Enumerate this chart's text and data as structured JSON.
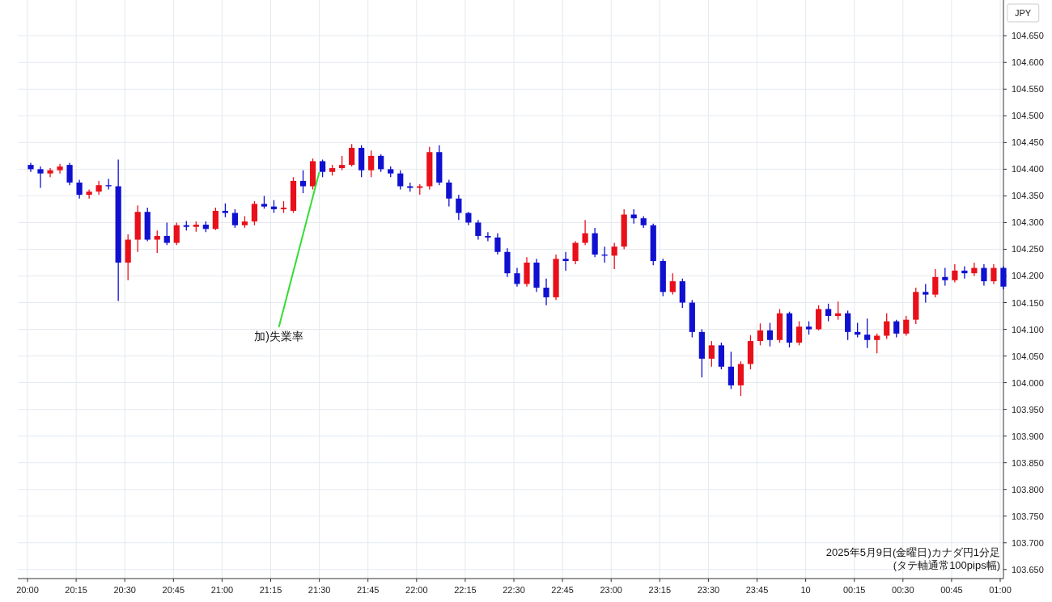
{
  "chart_data": {
    "type": "candlestick",
    "ylabel": "JPY",
    "x": [
      "2025-05-09T20:00",
      "2025-05-09T20:03",
      "2025-05-09T20:06",
      "2025-05-09T20:09",
      "2025-05-09T20:12",
      "2025-05-09T20:15",
      "2025-05-09T20:18",
      "2025-05-09T20:21",
      "2025-05-09T20:24",
      "2025-05-09T20:27",
      "2025-05-09T20:30",
      "2025-05-09T20:33",
      "2025-05-09T20:36",
      "2025-05-09T20:39",
      "2025-05-09T20:42",
      "2025-05-09T20:45",
      "2025-05-09T20:48",
      "2025-05-09T20:51",
      "2025-05-09T20:54",
      "2025-05-09T20:57",
      "2025-05-09T21:00",
      "2025-05-09T21:03",
      "2025-05-09T21:06",
      "2025-05-09T21:09",
      "2025-05-09T21:12",
      "2025-05-09T21:15",
      "2025-05-09T21:18",
      "2025-05-09T21:21",
      "2025-05-09T21:24",
      "2025-05-09T21:27",
      "2025-05-09T21:30",
      "2025-05-09T21:33",
      "2025-05-09T21:36",
      "2025-05-09T21:39",
      "2025-05-09T21:42",
      "2025-05-09T21:45",
      "2025-05-09T21:48",
      "2025-05-09T21:51",
      "2025-05-09T21:54",
      "2025-05-09T21:57",
      "2025-05-09T22:00",
      "2025-05-09T22:03",
      "2025-05-09T22:06",
      "2025-05-09T22:09",
      "2025-05-09T22:12",
      "2025-05-09T22:15",
      "2025-05-09T22:18",
      "2025-05-09T22:21",
      "2025-05-09T22:24",
      "2025-05-09T22:27",
      "2025-05-09T22:30",
      "2025-05-09T22:33",
      "2025-05-09T22:36",
      "2025-05-09T22:39",
      "2025-05-09T22:42",
      "2025-05-09T22:45",
      "2025-05-09T22:48",
      "2025-05-09T22:51",
      "2025-05-09T22:54",
      "2025-05-09T22:57",
      "2025-05-09T23:00",
      "2025-05-09T23:03",
      "2025-05-09T23:06",
      "2025-05-09T23:09",
      "2025-05-09T23:12",
      "2025-05-09T23:15",
      "2025-05-09T23:18",
      "2025-05-09T23:21",
      "2025-05-09T23:24",
      "2025-05-09T23:27",
      "2025-05-09T23:30",
      "2025-05-09T23:33",
      "2025-05-09T23:36",
      "2025-05-09T23:39",
      "2025-05-09T23:42",
      "2025-05-09T23:45",
      "2025-05-09T23:48",
      "2025-05-09T23:51",
      "2025-05-09T23:54",
      "2025-05-09T23:57",
      "2025-05-10T00:00",
      "2025-05-10T00:03",
      "2025-05-10T00:06",
      "2025-05-10T00:09",
      "2025-05-10T00:12",
      "2025-05-10T00:15",
      "2025-05-10T00:18",
      "2025-05-10T00:21",
      "2025-05-10T00:24",
      "2025-05-10T00:27",
      "2025-05-10T00:30",
      "2025-05-10T00:33",
      "2025-05-10T00:36",
      "2025-05-10T00:39",
      "2025-05-10T00:42",
      "2025-05-10T00:45",
      "2025-05-10T00:48",
      "2025-05-10T00:51",
      "2025-05-10T00:54",
      "2025-05-10T00:57",
      "2025-05-10T01:00"
    ],
    "ohlc": [
      [
        104.408,
        104.412,
        104.395,
        104.4
      ],
      [
        104.4,
        104.405,
        104.365,
        104.392
      ],
      [
        104.392,
        104.402,
        104.385,
        104.398
      ],
      [
        104.398,
        104.41,
        104.392,
        104.405
      ],
      [
        104.408,
        104.412,
        104.37,
        104.375
      ],
      [
        104.375,
        104.38,
        104.345,
        104.352
      ],
      [
        104.352,
        104.362,
        104.345,
        104.358
      ],
      [
        104.358,
        104.378,
        104.352,
        104.37
      ],
      [
        104.37,
        104.382,
        104.362,
        104.368
      ],
      [
        104.368,
        104.418,
        104.153,
        104.225
      ],
      [
        104.225,
        104.278,
        104.192,
        104.268
      ],
      [
        104.268,
        104.332,
        104.245,
        104.32
      ],
      [
        104.32,
        104.328,
        104.265,
        104.268
      ],
      [
        104.268,
        104.285,
        104.243,
        104.275
      ],
      [
        104.275,
        104.3,
        104.258,
        104.262
      ],
      [
        104.262,
        104.3,
        104.258,
        104.295
      ],
      [
        104.295,
        104.303,
        104.285,
        104.292
      ],
      [
        104.292,
        104.302,
        104.283,
        104.296
      ],
      [
        104.296,
        104.302,
        104.282,
        104.288
      ],
      [
        104.288,
        104.328,
        104.286,
        104.322
      ],
      [
        104.322,
        104.336,
        104.31,
        104.318
      ],
      [
        104.318,
        104.325,
        104.29,
        104.295
      ],
      [
        104.295,
        104.312,
        104.29,
        104.302
      ],
      [
        104.302,
        104.34,
        104.295,
        104.335
      ],
      [
        104.335,
        104.35,
        104.326,
        104.33
      ],
      [
        104.33,
        104.342,
        104.318,
        104.325
      ],
      [
        104.325,
        104.34,
        104.318,
        104.328
      ],
      [
        104.322,
        104.385,
        104.318,
        104.378
      ],
      [
        104.378,
        104.398,
        104.355,
        104.368
      ],
      [
        104.368,
        104.42,
        104.362,
        104.415
      ],
      [
        104.415,
        104.418,
        104.385,
        104.395
      ],
      [
        104.395,
        104.408,
        104.388,
        104.402
      ],
      [
        104.402,
        104.425,
        104.398,
        104.408
      ],
      [
        104.408,
        104.447,
        104.405,
        104.44
      ],
      [
        104.44,
        104.445,
        104.385,
        104.398
      ],
      [
        104.398,
        104.435,
        104.385,
        104.425
      ],
      [
        104.425,
        104.428,
        104.395,
        104.4
      ],
      [
        104.4,
        104.405,
        104.385,
        104.392
      ],
      [
        104.392,
        104.398,
        104.362,
        104.368
      ],
      [
        104.368,
        104.375,
        104.358,
        104.365
      ],
      [
        104.365,
        104.372,
        104.352,
        104.368
      ],
      [
        104.368,
        104.442,
        104.362,
        104.432
      ],
      [
        104.432,
        104.445,
        104.37,
        104.375
      ],
      [
        104.375,
        104.38,
        104.33,
        104.345
      ],
      [
        104.345,
        104.352,
        104.305,
        104.318
      ],
      [
        104.318,
        104.32,
        104.295,
        104.3
      ],
      [
        104.3,
        104.305,
        104.268,
        104.275
      ],
      [
        104.275,
        104.282,
        104.265,
        104.272
      ],
      [
        104.272,
        104.28,
        104.24,
        104.245
      ],
      [
        104.245,
        104.252,
        104.198,
        104.205
      ],
      [
        104.205,
        104.215,
        104.18,
        104.185
      ],
      [
        104.185,
        104.235,
        104.18,
        104.225
      ],
      [
        104.225,
        104.232,
        104.17,
        104.178
      ],
      [
        104.178,
        104.195,
        104.145,
        104.16
      ],
      [
        104.16,
        104.24,
        104.155,
        104.232
      ],
      [
        104.232,
        104.245,
        104.21,
        104.228
      ],
      [
        104.228,
        104.265,
        104.222,
        104.262
      ],
      [
        104.262,
        104.305,
        104.258,
        104.28
      ],
      [
        104.28,
        104.29,
        104.235,
        104.24
      ],
      [
        104.24,
        104.255,
        104.225,
        104.238
      ],
      [
        104.238,
        104.262,
        104.213,
        104.255
      ],
      [
        104.255,
        104.325,
        104.25,
        104.315
      ],
      [
        104.315,
        104.325,
        104.298,
        104.308
      ],
      [
        104.308,
        104.312,
        104.29,
        104.295
      ],
      [
        104.295,
        104.298,
        104.22,
        104.228
      ],
      [
        104.228,
        104.232,
        104.162,
        104.17
      ],
      [
        104.17,
        104.205,
        104.165,
        104.19
      ],
      [
        104.19,
        104.195,
        104.14,
        104.15
      ],
      [
        104.15,
        104.155,
        104.085,
        104.095
      ],
      [
        104.095,
        104.1,
        104.01,
        104.045
      ],
      [
        104.045,
        104.078,
        104.03,
        104.07
      ],
      [
        104.07,
        104.075,
        104.025,
        104.03
      ],
      [
        104.03,
        104.058,
        103.988,
        103.995
      ],
      [
        103.995,
        104.04,
        103.975,
        104.035
      ],
      [
        104.035,
        104.089,
        104.025,
        104.078
      ],
      [
        104.078,
        104.111,
        104.07,
        104.098
      ],
      [
        104.098,
        104.112,
        104.068,
        104.08
      ],
      [
        104.08,
        104.138,
        104.075,
        104.13
      ],
      [
        104.13,
        104.133,
        104.066,
        104.075
      ],
      [
        104.075,
        104.115,
        104.07,
        104.105
      ],
      [
        104.105,
        104.115,
        104.09,
        104.1
      ],
      [
        104.1,
        104.145,
        104.098,
        104.138
      ],
      [
        104.138,
        104.148,
        104.115,
        104.125
      ],
      [
        104.125,
        104.152,
        104.118,
        104.13
      ],
      [
        104.13,
        104.135,
        104.08,
        104.095
      ],
      [
        104.095,
        104.112,
        104.085,
        104.09
      ],
      [
        104.09,
        104.12,
        104.065,
        104.08
      ],
      [
        104.08,
        104.092,
        104.055,
        104.088
      ],
      [
        104.088,
        104.13,
        104.082,
        104.115
      ],
      [
        104.115,
        104.118,
        104.085,
        104.092
      ],
      [
        104.092,
        104.125,
        104.088,
        104.118
      ],
      [
        104.118,
        104.178,
        104.11,
        104.17
      ],
      [
        104.17,
        104.185,
        104.15,
        104.165
      ],
      [
        104.165,
        104.213,
        104.16,
        104.198
      ],
      [
        104.198,
        104.215,
        104.182,
        104.192
      ],
      [
        104.192,
        104.222,
        104.188,
        104.21
      ],
      [
        104.21,
        104.218,
        104.195,
        104.205
      ],
      [
        104.205,
        104.225,
        104.2,
        104.215
      ],
      [
        104.215,
        104.222,
        104.182,
        104.19
      ],
      [
        104.19,
        104.222,
        104.185,
        104.215
      ],
      [
        104.215,
        104.218,
        104.175,
        104.18
      ]
    ],
    "colors": [
      "#1010d0",
      "#1010d0",
      "#e8101a",
      "#e8101a",
      "#1010d0",
      "#1010d0",
      "#e8101a",
      "#e8101a",
      "#1010d0",
      "#1010d0",
      "#e8101a",
      "#e8101a",
      "#1010d0",
      "#e8101a",
      "#1010d0",
      "#e8101a",
      "#1010d0",
      "#e8101a",
      "#1010d0",
      "#e8101a",
      "#1010d0",
      "#1010d0",
      "#e8101a",
      "#e8101a",
      "#1010d0",
      "#1010d0",
      "#e8101a",
      "#e8101a",
      "#1010d0",
      "#e8101a",
      "#1010d0",
      "#e8101a",
      "#e8101a",
      "#e8101a",
      "#1010d0",
      "#e8101a",
      "#1010d0",
      "#1010d0",
      "#1010d0",
      "#1010d0",
      "#e8101a",
      "#e8101a",
      "#1010d0",
      "#1010d0",
      "#1010d0",
      "#1010d0",
      "#1010d0",
      "#1010d0",
      "#1010d0",
      "#1010d0",
      "#1010d0",
      "#e8101a",
      "#1010d0",
      "#1010d0",
      "#e8101a",
      "#1010d0",
      "#e8101a",
      "#e8101a",
      "#1010d0",
      "#1010d0",
      "#e8101a",
      "#e8101a",
      "#1010d0",
      "#1010d0",
      "#1010d0",
      "#1010d0",
      "#e8101a",
      "#1010d0",
      "#1010d0",
      "#1010d0",
      "#e8101a",
      "#1010d0",
      "#1010d0",
      "#e8101a",
      "#e8101a",
      "#e8101a",
      "#1010d0",
      "#e8101a",
      "#1010d0",
      "#e8101a",
      "#1010d0",
      "#e8101a",
      "#1010d0",
      "#e8101a",
      "#1010d0",
      "#1010d0",
      "#1010d0",
      "#e8101a",
      "#e8101a",
      "#1010d0",
      "#e8101a",
      "#e8101a",
      "#1010d0",
      "#e8101a",
      "#1010d0",
      "#e8101a",
      "#1010d0",
      "#e8101a",
      "#1010d0",
      "#e8101a",
      "#1010d0"
    ],
    "xlim": [
      "2025-05-09T19:57",
      "2025-05-10T01:01"
    ],
    "ylim": [
      103.633,
      104.717
    ],
    "xticks": [
      {
        "value": "2025-05-09T20:00",
        "label": "20:00"
      },
      {
        "value": "2025-05-09T20:15",
        "label": "20:15"
      },
      {
        "value": "2025-05-09T20:30",
        "label": "20:30"
      },
      {
        "value": "2025-05-09T20:45",
        "label": "20:45"
      },
      {
        "value": "2025-05-09T21:00",
        "label": "21:00"
      },
      {
        "value": "2025-05-09T21:15",
        "label": "21:15"
      },
      {
        "value": "2025-05-09T21:30",
        "label": "21:30"
      },
      {
        "value": "2025-05-09T21:45",
        "label": "21:45"
      },
      {
        "value": "2025-05-09T22:00",
        "label": "22:00"
      },
      {
        "value": "2025-05-09T22:15",
        "label": "22:15"
      },
      {
        "value": "2025-05-09T22:30",
        "label": "22:30"
      },
      {
        "value": "2025-05-09T22:45",
        "label": "22:45"
      },
      {
        "value": "2025-05-09T23:00",
        "label": "23:00"
      },
      {
        "value": "2025-05-09T23:15",
        "label": "23:15"
      },
      {
        "value": "2025-05-09T23:30",
        "label": "23:30"
      },
      {
        "value": "2025-05-09T23:45",
        "label": "23:45"
      },
      {
        "value": "2025-05-10T00:00",
        "label": "10"
      },
      {
        "value": "2025-05-10T00:15",
        "label": "00:15"
      },
      {
        "value": "2025-05-10T00:30",
        "label": "00:30"
      },
      {
        "value": "2025-05-10T00:45",
        "label": "00:45"
      },
      {
        "value": "2025-05-10T01:00",
        "label": "01:00"
      }
    ],
    "yticks": [
      {
        "value": 103.65,
        "label": "103.650"
      },
      {
        "value": 103.7,
        "label": "103.700"
      },
      {
        "value": 103.75,
        "label": "103.750"
      },
      {
        "value": 103.8,
        "label": "103.800"
      },
      {
        "value": 103.85,
        "label": "103.850"
      },
      {
        "value": 103.9,
        "label": "103.900"
      },
      {
        "value": 103.95,
        "label": "103.950"
      },
      {
        "value": 104.0,
        "label": "104.000"
      },
      {
        "value": 104.05,
        "label": "104.050"
      },
      {
        "value": 104.1,
        "label": "104.100"
      },
      {
        "value": 104.15,
        "label": "104.150"
      },
      {
        "value": 104.2,
        "label": "104.200"
      },
      {
        "value": 104.25,
        "label": "104.250"
      },
      {
        "value": 104.3,
        "label": "104.300"
      },
      {
        "value": 104.35,
        "label": "104.350"
      },
      {
        "value": 104.4,
        "label": "104.400"
      },
      {
        "value": 104.45,
        "label": "104.450"
      },
      {
        "value": 104.5,
        "label": "104.500"
      },
      {
        "value": 104.55,
        "label": "104.550"
      },
      {
        "value": 104.6,
        "label": "104.600"
      },
      {
        "value": 104.65,
        "label": "104.650"
      }
    ],
    "grid": true,
    "annotations": [
      {
        "text": "加)失業率",
        "x": "2025-05-09T21:30",
        "y": 104.395
      },
      "2025年5月9日(金曜日)カナダ円1分足",
      "(タテ軸通常100pips幅)"
    ]
  }
}
